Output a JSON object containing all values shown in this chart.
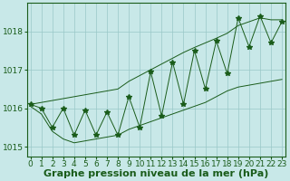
{
  "xlabel": "Graphe pression niveau de la mer (hPa)",
  "ylabel": "",
  "x_values": [
    0,
    1,
    2,
    3,
    4,
    5,
    6,
    7,
    8,
    9,
    10,
    11,
    12,
    13,
    14,
    15,
    16,
    17,
    18,
    19,
    20,
    21,
    22,
    23
  ],
  "y_main": [
    1016.1,
    1016.0,
    1015.5,
    1016.0,
    1015.3,
    1015.95,
    1015.3,
    1015.9,
    1015.3,
    1016.3,
    1015.5,
    1016.95,
    1015.8,
    1017.2,
    1016.1,
    1017.5,
    1016.5,
    1017.75,
    1016.9,
    1018.35,
    1017.6,
    1018.4,
    1017.7,
    1018.25
  ],
  "y_upper": [
    1016.1,
    1016.15,
    1016.2,
    1016.25,
    1016.3,
    1016.35,
    1016.4,
    1016.45,
    1016.5,
    1016.7,
    1016.85,
    1017.0,
    1017.15,
    1017.3,
    1017.45,
    1017.58,
    1017.7,
    1017.82,
    1017.95,
    1018.15,
    1018.25,
    1018.35,
    1018.3,
    1018.3
  ],
  "y_lower": [
    1016.05,
    1015.85,
    1015.4,
    1015.2,
    1015.1,
    1015.15,
    1015.2,
    1015.25,
    1015.3,
    1015.45,
    1015.55,
    1015.65,
    1015.75,
    1015.85,
    1015.95,
    1016.05,
    1016.15,
    1016.3,
    1016.45,
    1016.55,
    1016.6,
    1016.65,
    1016.7,
    1016.75
  ],
  "ylim": [
    1014.75,
    1018.75
  ],
  "yticks": [
    1015,
    1016,
    1017,
    1018
  ],
  "xticks": [
    0,
    1,
    2,
    3,
    4,
    5,
    6,
    7,
    8,
    9,
    10,
    11,
    12,
    13,
    14,
    15,
    16,
    17,
    18,
    19,
    20,
    21,
    22,
    23
  ],
  "line_color": "#1a5c1a",
  "bg_color": "#c8e8e8",
  "grid_color": "#9ac8c8",
  "marker": "*",
  "marker_size": 4,
  "xlabel_fontsize": 8,
  "tick_fontsize": 6.5
}
